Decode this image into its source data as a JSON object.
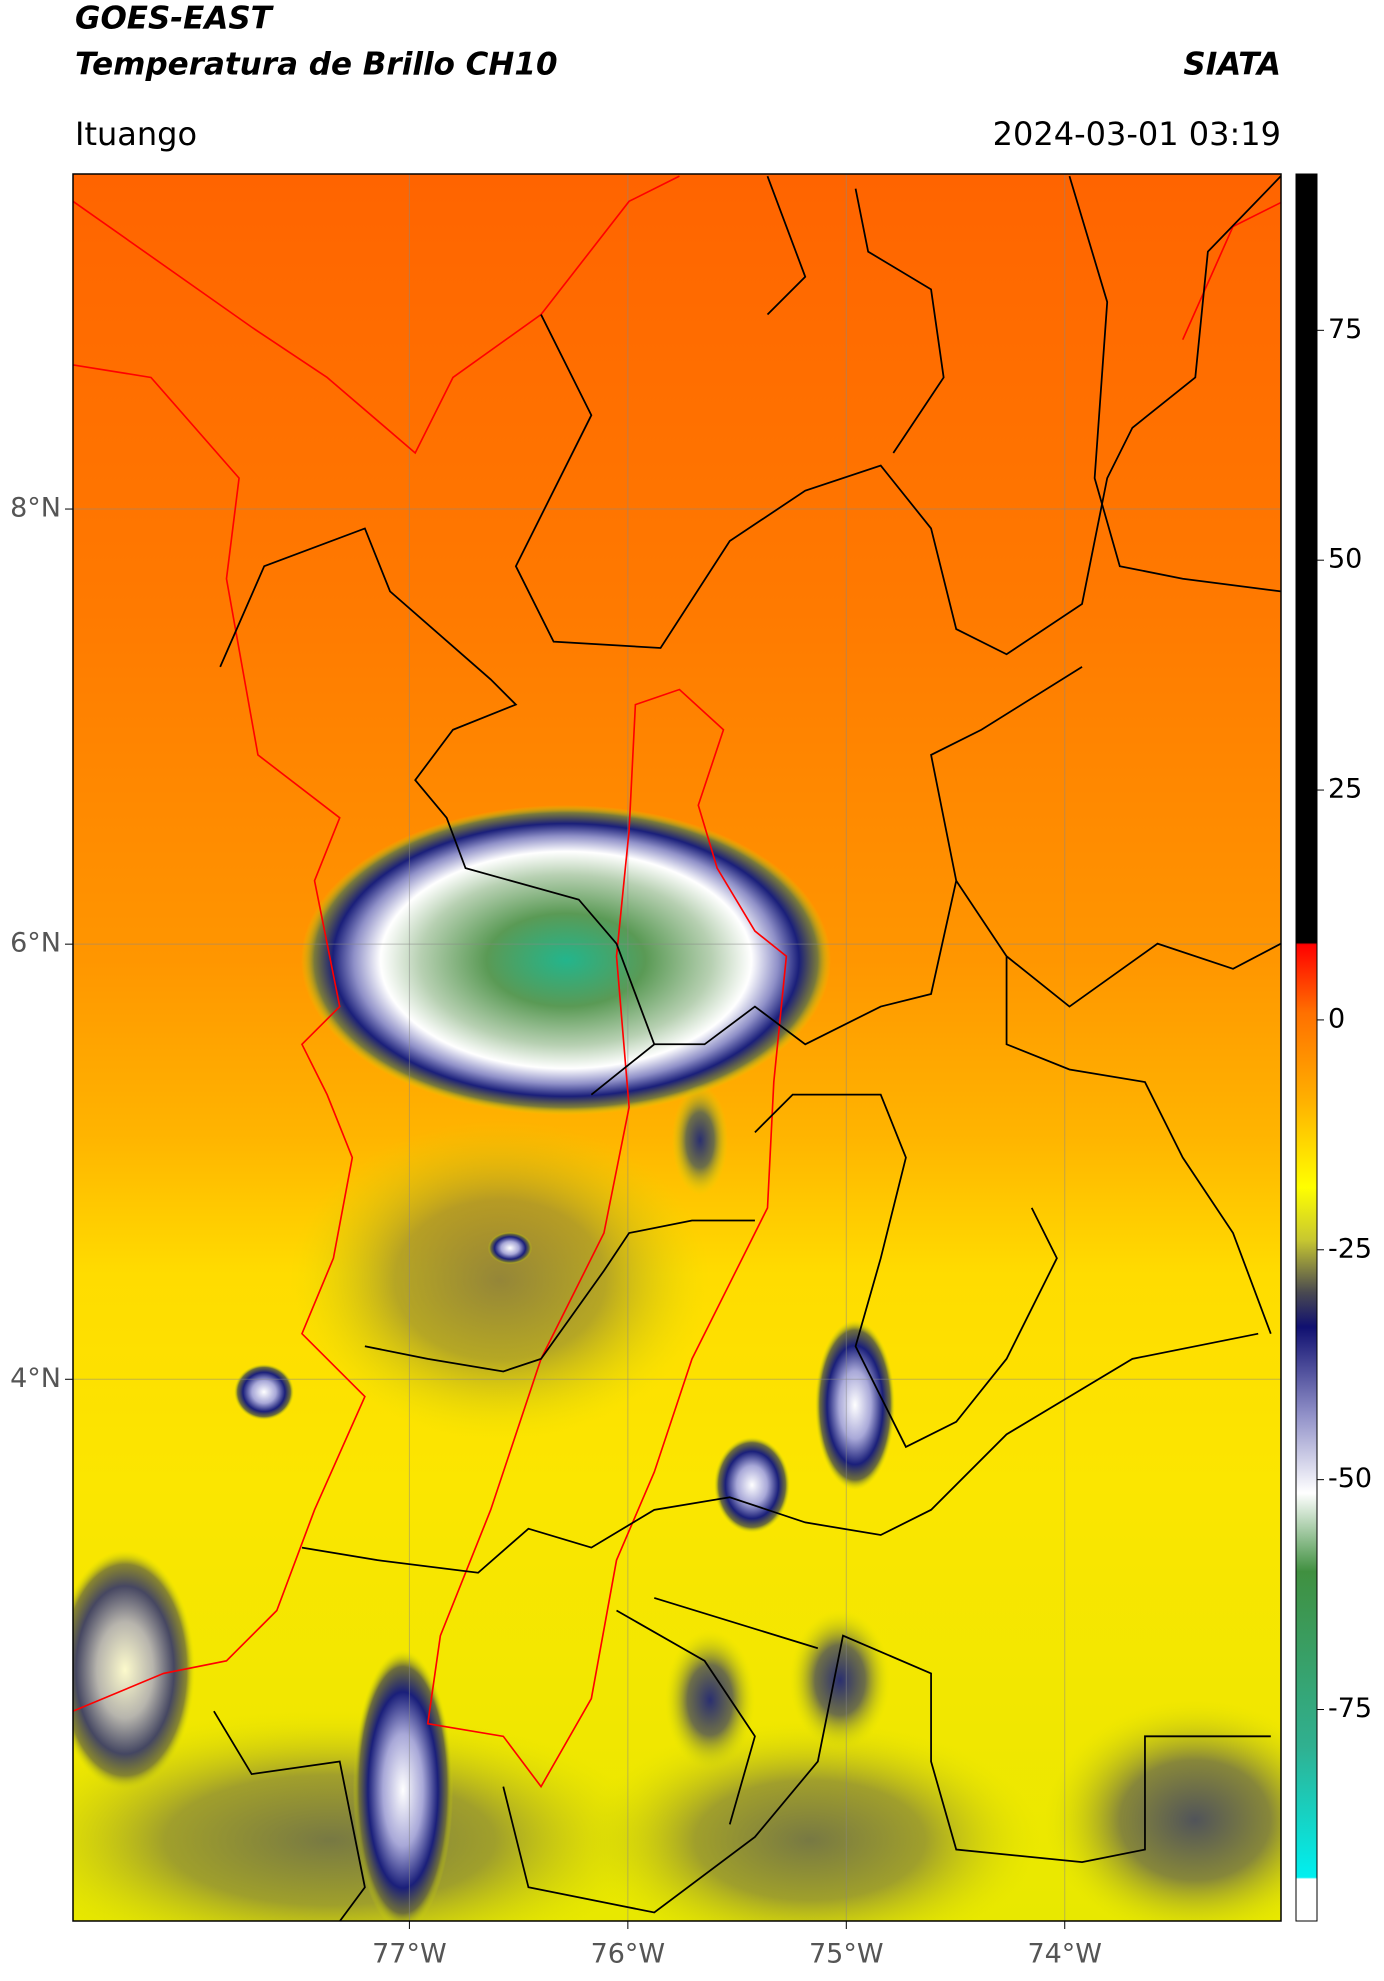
{
  "header": {
    "title": "GOES-EAST",
    "subtitle": "Temperatura de Brillo CH10",
    "brand": "SIATA",
    "location": "Ituango",
    "datetime": "2024-03-01 03:19"
  },
  "map": {
    "xlim": [
      -78.54,
      -73.01
    ],
    "ylim": [
      1.51,
      9.54
    ],
    "xticks": [
      {
        "value": -77,
        "label": "77°W"
      },
      {
        "value": -76,
        "label": "76°W"
      },
      {
        "value": -75,
        "label": "75°W"
      },
      {
        "value": -74,
        "label": "74°W"
      }
    ],
    "yticks": [
      {
        "value": 8,
        "label": "8°N"
      },
      {
        "value": 6,
        "label": "6°N"
      },
      {
        "value": 4,
        "label": "4°N"
      }
    ],
    "grid": true
  },
  "colorbar": {
    "lim": [
      -98,
      92
    ],
    "ticks": [
      75,
      50,
      25,
      0,
      -25,
      -50,
      -75
    ]
  }
}
